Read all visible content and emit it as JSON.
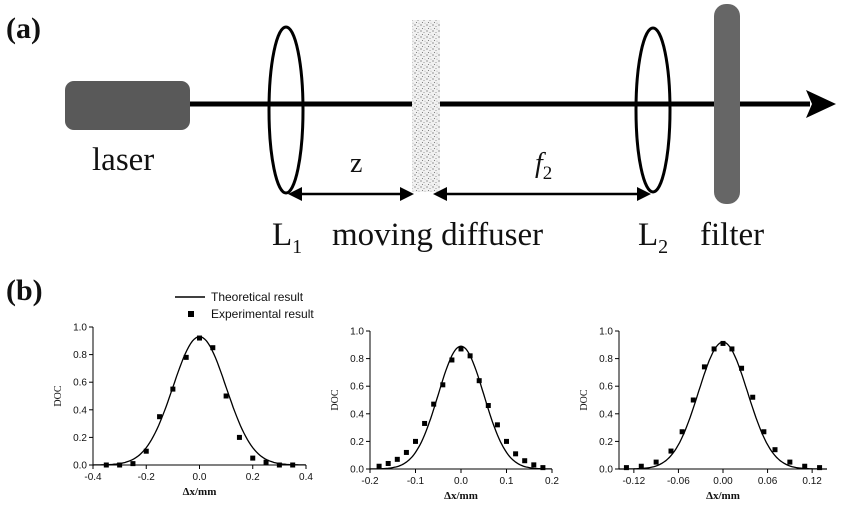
{
  "panel_a": {
    "label": "(a)",
    "laser_label": "laser",
    "z_label": "z",
    "f2_label": "f",
    "f2_subscript": "2",
    "l1_label": "L",
    "l1_subscript": "1",
    "diffuser_label": "moving diffuser",
    "l2_label": "L",
    "l2_subscript": "2",
    "filter_label": "filter"
  },
  "panel_b": {
    "label": "(b)",
    "legend": {
      "theory_label": "Theoretical result",
      "experiment_label": "Experimental result"
    }
  },
  "chart_data": [
    {
      "type": "line",
      "ylabel": "DOC",
      "xlabel": "Δx/mm",
      "xlim": [
        -0.4,
        0.4
      ],
      "ylim": [
        0.0,
        1.0
      ],
      "xticks": [
        -0.4,
        -0.2,
        0.0,
        0.2,
        0.4
      ],
      "xtick_labels": [
        "-0.4",
        "-0.2",
        "0.0",
        "0.2",
        "0.4"
      ],
      "yticks": [
        0.0,
        0.2,
        0.4,
        0.6,
        0.8,
        1.0
      ],
      "ytick_labels": [
        "0.0",
        "0.2",
        "0.4",
        "0.6",
        "0.8",
        "1.0"
      ],
      "theory": {
        "amplitude": 0.93,
        "sigma": 0.1,
        "offset": 0.0
      },
      "series": [
        {
          "name": "Experimental result",
          "x": [
            -0.35,
            -0.3,
            -0.25,
            -0.2,
            -0.15,
            -0.1,
            -0.05,
            0.0,
            0.05,
            0.1,
            0.15,
            0.2,
            0.25,
            0.3,
            0.35
          ],
          "y": [
            0.0,
            0.0,
            0.01,
            0.1,
            0.35,
            0.55,
            0.78,
            0.92,
            0.85,
            0.5,
            0.2,
            0.05,
            0.02,
            0.0,
            0.0
          ]
        }
      ]
    },
    {
      "type": "line",
      "ylabel": "DOC",
      "xlabel": "Δx/mm",
      "xlim": [
        -0.2,
        0.2
      ],
      "ylim": [
        0.0,
        1.0
      ],
      "xticks": [
        -0.2,
        -0.1,
        0.0,
        0.1,
        0.2
      ],
      "xtick_labels": [
        "-0.2",
        "-0.1",
        "0.0",
        "0.1",
        "0.2"
      ],
      "yticks": [
        0.0,
        0.2,
        0.4,
        0.6,
        0.8,
        1.0
      ],
      "ytick_labels": [
        "0.0",
        "0.2",
        "0.4",
        "0.6",
        "0.8",
        "1.0"
      ],
      "theory": {
        "amplitude": 0.89,
        "sigma": 0.05,
        "offset": 0.0
      },
      "series": [
        {
          "name": "Experimental result",
          "x": [
            -0.18,
            -0.16,
            -0.14,
            -0.12,
            -0.1,
            -0.08,
            -0.06,
            -0.04,
            -0.02,
            0.0,
            0.02,
            0.04,
            0.06,
            0.08,
            0.1,
            0.12,
            0.14,
            0.16,
            0.18
          ],
          "y": [
            0.02,
            0.04,
            0.07,
            0.12,
            0.2,
            0.33,
            0.47,
            0.61,
            0.79,
            0.87,
            0.82,
            0.64,
            0.46,
            0.32,
            0.2,
            0.11,
            0.06,
            0.03,
            0.01
          ]
        }
      ]
    },
    {
      "type": "line",
      "ylabel": "DOC",
      "xlabel": "Δx/mm",
      "xlim": [
        -0.14,
        0.14
      ],
      "ylim": [
        0.0,
        1.0
      ],
      "xticks": [
        -0.12,
        -0.06,
        0.0,
        0.06,
        0.12
      ],
      "xtick_labels": [
        "-0.12",
        "-0.06",
        "0.00",
        "0.06",
        "0.12"
      ],
      "yticks": [
        0.0,
        0.2,
        0.4,
        0.6,
        0.8,
        1.0
      ],
      "ytick_labels": [
        "0.0",
        "0.2",
        "0.4",
        "0.6",
        "0.8",
        "1.0"
      ],
      "theory": {
        "amplitude": 0.92,
        "sigma": 0.033,
        "offset": 0.0
      },
      "series": [
        {
          "name": "Experimental result",
          "x": [
            -0.13,
            -0.11,
            -0.09,
            -0.07,
            -0.055,
            -0.04,
            -0.025,
            -0.012,
            0.0,
            0.012,
            0.025,
            0.04,
            0.055,
            0.07,
            0.09,
            0.11,
            0.13
          ],
          "y": [
            0.01,
            0.02,
            0.05,
            0.13,
            0.27,
            0.5,
            0.74,
            0.87,
            0.91,
            0.87,
            0.73,
            0.52,
            0.27,
            0.14,
            0.05,
            0.02,
            0.01
          ]
        }
      ]
    }
  ]
}
